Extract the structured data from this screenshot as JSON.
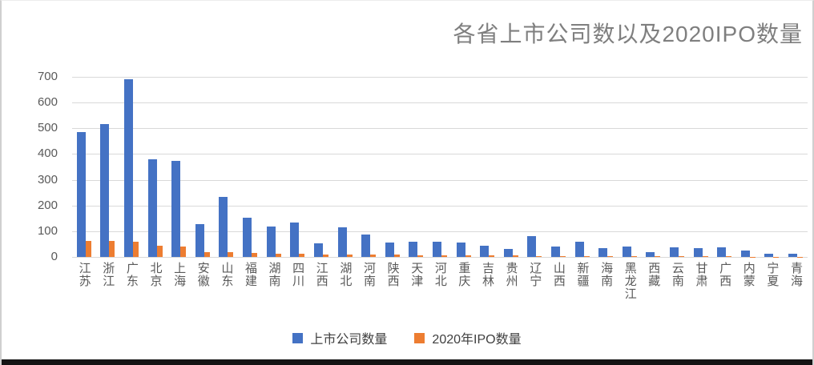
{
  "chart_data": {
    "type": "bar",
    "title": "各省上市公司数以及2020IPO数量",
    "xlabel": "",
    "ylabel": "",
    "ylim": [
      0,
      700
    ],
    "ytick_step": 100,
    "grid": "horizontal",
    "legend_position": "bottom-center",
    "categories": [
      "江苏",
      "浙江",
      "广东",
      "北京",
      "上海",
      "安徽",
      "山东",
      "福建",
      "湖南",
      "四川",
      "江西",
      "湖北",
      "河南",
      "陕西",
      "天津",
      "河北",
      "重庆",
      "吉林",
      "贵州",
      "辽宁",
      "山西",
      "新疆",
      "海南",
      "黑龙江",
      "西藏",
      "云南",
      "甘肃",
      "广西",
      "内蒙",
      "宁夏",
      "青海"
    ],
    "series": [
      {
        "name": "上市公司数量",
        "color": "#4472C4",
        "values": [
          485,
          515,
          690,
          380,
          373,
          128,
          232,
          152,
          117,
          135,
          53,
          116,
          86,
          57,
          60,
          60,
          57,
          45,
          30,
          80,
          40,
          58,
          33,
          40,
          18,
          36,
          33,
          38,
          25,
          13,
          11
        ]
      },
      {
        "name": "2020年IPO数量",
        "color": "#ED7D31",
        "values": [
          63,
          62,
          60,
          45,
          40,
          20,
          18,
          15,
          12,
          11,
          10,
          9,
          9,
          8,
          7,
          7,
          6,
          5,
          5,
          4,
          4,
          4,
          3,
          3,
          3,
          2,
          2,
          2,
          1,
          1,
          1
        ]
      }
    ]
  }
}
